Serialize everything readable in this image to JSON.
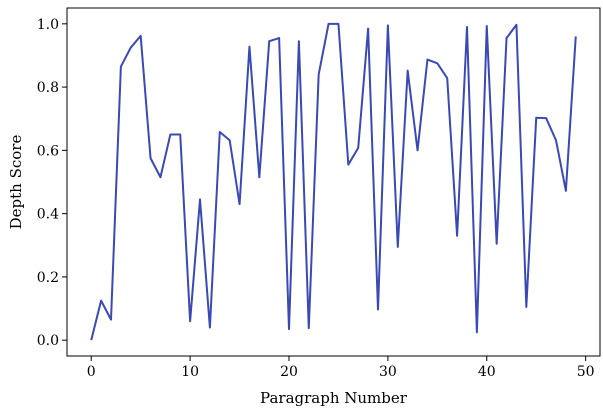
{
  "chart_data": {
    "type": "line",
    "xlabel": "Paragraph Number",
    "ylabel": "Depth Score",
    "xlim": [
      -2.45,
      51.45
    ],
    "ylim": [
      -0.05,
      1.05
    ],
    "xticks": [
      0,
      10,
      20,
      30,
      40,
      50
    ],
    "yticks": [
      0.0,
      0.2,
      0.4,
      0.6,
      0.8,
      1.0
    ],
    "xtick_labels": [
      "0",
      "10",
      "20",
      "30",
      "40",
      "50"
    ],
    "ytick_labels": [
      "0.0",
      "0.2",
      "0.4",
      "0.6",
      "0.8",
      "1.0"
    ],
    "grid": false,
    "line_color": "#3949b5",
    "series": [
      {
        "x": [
          0,
          1,
          2,
          3,
          4,
          5,
          6,
          7,
          8,
          9,
          10,
          11,
          12,
          13,
          14,
          15,
          16,
          17,
          18,
          19,
          20,
          21,
          22,
          23,
          24,
          25,
          26,
          27,
          28,
          29,
          30,
          31,
          32,
          33,
          34,
          35,
          36,
          37,
          38,
          39,
          40,
          41,
          42,
          43,
          44,
          45,
          46,
          47,
          48,
          49
        ],
        "values": [
          0.0,
          0.125,
          0.065,
          0.865,
          0.925,
          0.962,
          0.575,
          0.515,
          0.65,
          0.65,
          0.06,
          0.445,
          0.04,
          0.658,
          0.632,
          0.43,
          0.928,
          0.515,
          0.945,
          0.955,
          0.035,
          0.945,
          0.038,
          0.84,
          1.0,
          1.0,
          0.555,
          0.608,
          0.985,
          0.097,
          0.995,
          0.295,
          0.852,
          0.6,
          0.887,
          0.875,
          0.828,
          0.33,
          0.99,
          0.025,
          0.993,
          0.305,
          0.955,
          0.997,
          0.105,
          0.703,
          0.702,
          0.632,
          0.472,
          0.96
        ]
      }
    ]
  }
}
